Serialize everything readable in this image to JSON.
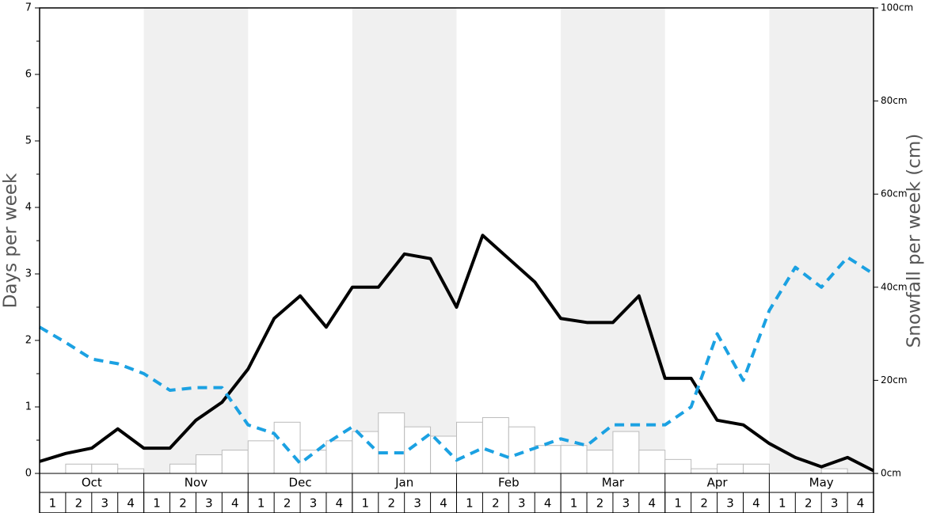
{
  "chart_data": {
    "type": "bar",
    "y_label": "Days per week",
    "y2_label": "Snowfall per week (cm)",
    "months": [
      "Oct",
      "Nov",
      "Dec",
      "Jan",
      "Feb",
      "Mar",
      "Apr",
      "May"
    ],
    "categories": [
      "1",
      "2",
      "3",
      "4",
      "1",
      "2",
      "3",
      "4",
      "1",
      "2",
      "3",
      "4",
      "1",
      "2",
      "3",
      "4",
      "1",
      "2",
      "3",
      "4",
      "1",
      "2",
      "3",
      "4",
      "1",
      "2",
      "3",
      "4",
      "1",
      "2",
      "3",
      "4"
    ],
    "xlim": [
      0,
      32
    ],
    "ylim": [
      0,
      7
    ],
    "yticks": [
      0,
      1,
      2,
      3,
      4,
      5,
      6,
      7
    ],
    "y2lim": [
      0,
      100
    ],
    "y2ticks": [
      {
        "value": 0,
        "label": "0cm"
      },
      {
        "value": 20,
        "label": "20cm"
      },
      {
        "value": 40,
        "label": "40cm"
      },
      {
        "value": 60,
        "label": "60cm"
      },
      {
        "value": 80,
        "label": "80cm"
      },
      {
        "value": 100,
        "label": "100cm"
      }
    ],
    "series": [
      {
        "type": "bar",
        "axis": "y2",
        "color": "#ffffff",
        "edge_color": "#bbbbbb",
        "values": [
          0,
          2,
          2,
          1,
          0,
          2,
          4,
          5,
          7,
          11,
          5,
          7,
          9,
          13,
          10,
          8,
          11,
          12,
          10,
          6,
          6,
          5,
          9,
          5,
          3,
          1,
          2,
          2,
          0,
          0,
          1,
          0
        ]
      },
      {
        "type": "line",
        "color": "#000000",
        "dashed": false,
        "x": [
          0,
          1,
          2,
          3,
          4,
          5,
          6,
          7,
          8,
          9,
          10,
          11,
          12,
          13,
          14,
          15,
          16,
          17,
          18,
          19,
          20,
          21,
          22,
          23,
          24,
          25,
          26,
          27,
          28,
          29,
          30,
          31,
          32
        ],
        "values": [
          0.18,
          0.3,
          0.38,
          0.67,
          0.38,
          0.38,
          0.8,
          1.07,
          1.57,
          2.33,
          2.67,
          2.2,
          2.8,
          2.8,
          3.3,
          3.23,
          2.5,
          3.58,
          3.23,
          2.88,
          2.33,
          2.27,
          2.27,
          2.67,
          1.43,
          1.43,
          0.8,
          0.73,
          0.45,
          0.24,
          0.1,
          0.24,
          0.04
        ]
      },
      {
        "type": "line",
        "color": "#1ba1e2",
        "dashed": true,
        "x": [
          0,
          1,
          2,
          3,
          4,
          5,
          6,
          7,
          8,
          9,
          10,
          11,
          12,
          13,
          14,
          15,
          16,
          17,
          18,
          19,
          20,
          21,
          22,
          23,
          24,
          25,
          26,
          27,
          28,
          29,
          30,
          31,
          32
        ],
        "values": [
          2.2,
          1.97,
          1.72,
          1.65,
          1.5,
          1.25,
          1.29,
          1.29,
          0.73,
          0.6,
          0.15,
          0.45,
          0.7,
          0.31,
          0.31,
          0.6,
          0.2,
          0.38,
          0.24,
          0.38,
          0.52,
          0.42,
          0.73,
          0.73,
          0.73,
          1.0,
          2.1,
          1.4,
          2.45,
          3.1,
          2.8,
          3.25,
          3.0
        ]
      }
    ]
  }
}
